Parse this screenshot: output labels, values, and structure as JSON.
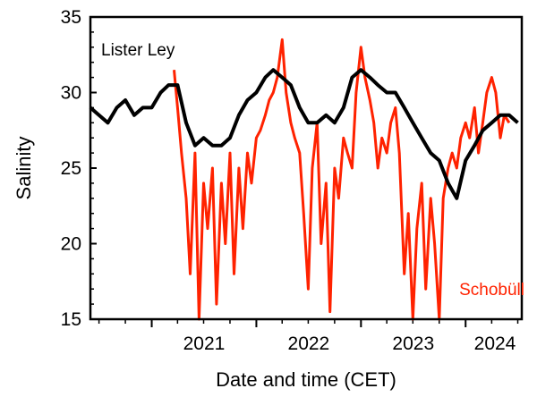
{
  "chart_data": {
    "type": "line",
    "xlabel": "Date and time (CET)",
    "ylabel": "Salinity",
    "xlim": [
      "2020-06-01",
      "2024-07-15"
    ],
    "ylim": [
      15,
      35
    ],
    "yticks": [
      15,
      20,
      25,
      30,
      35
    ],
    "ytick_labels": [
      "15",
      "20",
      "25",
      "30",
      "35"
    ],
    "xticks": [
      "2021-01-01",
      "2022-01-01",
      "2023-01-01",
      "2024-01-01"
    ],
    "xtick_labels": [
      "2021",
      "2022",
      "2023",
      "2024"
    ],
    "grid": false,
    "series": [
      {
        "name": "Schobüll",
        "color": "#ff2200",
        "x": [
          "2021-03-20",
          "2021-04-01",
          "2021-04-15",
          "2021-05-01",
          "2021-05-15",
          "2021-06-01",
          "2021-06-15",
          "2021-07-01",
          "2021-07-15",
          "2021-08-01",
          "2021-08-15",
          "2021-09-01",
          "2021-09-15",
          "2021-10-01",
          "2021-10-15",
          "2021-11-01",
          "2021-11-15",
          "2021-12-01",
          "2021-12-15",
          "2022-01-01",
          "2022-01-15",
          "2022-02-01",
          "2022-02-15",
          "2022-03-01",
          "2022-03-15",
          "2022-04-01",
          "2022-04-15",
          "2022-05-01",
          "2022-05-15",
          "2022-06-01",
          "2022-06-15",
          "2022-07-01",
          "2022-07-15",
          "2022-08-01",
          "2022-08-15",
          "2022-09-01",
          "2022-09-15",
          "2022-10-01",
          "2022-10-15",
          "2022-11-01",
          "2022-11-15",
          "2022-12-01",
          "2022-12-15",
          "2023-01-01",
          "2023-01-15",
          "2023-02-01",
          "2023-02-15",
          "2023-03-01",
          "2023-03-15",
          "2023-04-01",
          "2023-04-15",
          "2023-05-01",
          "2023-05-15",
          "2023-06-01",
          "2023-06-15",
          "2023-07-01",
          "2023-07-15",
          "2023-08-01",
          "2023-08-15",
          "2023-09-01",
          "2023-09-15",
          "2023-10-01",
          "2023-10-15",
          "2023-11-01",
          "2023-11-15",
          "2023-12-01",
          "2023-12-15",
          "2024-01-01",
          "2024-01-15",
          "2024-02-01",
          "2024-02-15",
          "2024-03-01",
          "2024-03-15",
          "2024-04-01",
          "2024-04-15",
          "2024-05-01",
          "2024-05-15",
          "2024-06-01"
        ],
        "y": [
          31.5,
          29.0,
          26.0,
          23.0,
          18.0,
          26.0,
          15.0,
          24.0,
          21.0,
          25.0,
          16.0,
          24.0,
          20.0,
          26.0,
          18.0,
          25.0,
          21.0,
          26.0,
          24.0,
          27.0,
          27.5,
          28.5,
          29.5,
          30.0,
          31.0,
          33.5,
          30.0,
          28.0,
          27.0,
          26.0,
          22.0,
          17.0,
          25.0,
          28.0,
          20.0,
          24.0,
          15.5,
          25.0,
          23.0,
          27.0,
          26.0,
          25.0,
          30.0,
          33.0,
          31.0,
          29.5,
          28.0,
          25.0,
          27.0,
          26.0,
          28.0,
          29.0,
          26.0,
          18.0,
          22.0,
          15.0,
          21.0,
          24.0,
          17.0,
          23.0,
          20.0,
          15.0,
          23.0,
          25.0,
          26.0,
          25.0,
          27.0,
          28.0,
          27.0,
          29.0,
          26.0,
          28.0,
          30.0,
          31.0,
          30.0,
          27.0,
          28.5,
          28.0
        ]
      },
      {
        "name": "Lister Ley",
        "color": "#000000",
        "x": [
          "2020-06-01",
          "2020-07-01",
          "2020-08-01",
          "2020-09-01",
          "2020-10-01",
          "2020-11-01",
          "2020-12-01",
          "2021-01-01",
          "2021-02-01",
          "2021-03-01",
          "2021-04-01",
          "2021-05-01",
          "2021-06-01",
          "2021-07-01",
          "2021-08-01",
          "2021-09-01",
          "2021-10-01",
          "2021-11-01",
          "2021-12-01",
          "2022-01-01",
          "2022-02-01",
          "2022-03-01",
          "2022-04-01",
          "2022-05-01",
          "2022-06-01",
          "2022-07-01",
          "2022-08-01",
          "2022-09-01",
          "2022-10-01",
          "2022-11-01",
          "2022-12-01",
          "2023-01-01",
          "2023-02-01",
          "2023-03-01",
          "2023-04-01",
          "2023-05-01",
          "2023-06-01",
          "2023-07-01",
          "2023-08-01",
          "2023-09-01",
          "2023-10-01",
          "2023-11-01",
          "2023-12-01",
          "2024-01-01",
          "2024-02-01",
          "2024-03-01",
          "2024-04-01",
          "2024-05-01",
          "2024-06-01",
          "2024-07-01"
        ],
        "y": [
          29.0,
          28.5,
          28.0,
          29.0,
          29.5,
          28.5,
          29.0,
          29.0,
          30.0,
          30.5,
          30.5,
          28.0,
          26.5,
          27.0,
          26.5,
          26.5,
          27.0,
          28.5,
          29.5,
          30.0,
          31.0,
          31.5,
          31.0,
          30.5,
          29.0,
          28.0,
          28.0,
          28.5,
          28.0,
          29.0,
          31.0,
          31.5,
          31.0,
          30.5,
          30.0,
          30.0,
          29.0,
          28.0,
          27.0,
          26.0,
          25.5,
          24.0,
          23.0,
          25.5,
          26.5,
          27.5,
          28.0,
          28.5,
          28.5,
          28.0
        ]
      }
    ]
  }
}
